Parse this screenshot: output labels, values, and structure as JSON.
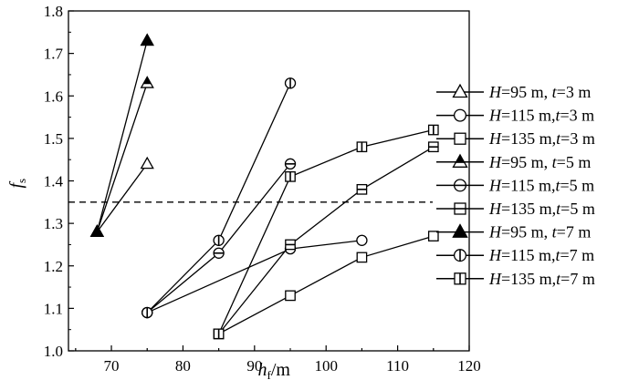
{
  "chart_data": {
    "type": "line",
    "xlabel": {
      "symbol": "h",
      "subscript": "f",
      "unit": "/m"
    },
    "ylabel": {
      "symbol": "f",
      "subscript": "s"
    },
    "xlim": [
      64,
      120
    ],
    "ylim": [
      1.0,
      1.8
    ],
    "xticks": [
      70,
      80,
      90,
      100,
      110,
      120
    ],
    "yticks": [
      1.0,
      1.1,
      1.2,
      1.3,
      1.4,
      1.5,
      1.6,
      1.7,
      1.8
    ],
    "ytick_labels": [
      "1.0",
      "1.1",
      "1.2",
      "1.3",
      "1.4",
      "1.5",
      "1.6",
      "1.7",
      "1.8"
    ],
    "reference_line": {
      "y": 1.35,
      "style": "dashed"
    },
    "grid": false,
    "legend_position": "right",
    "series": [
      {
        "name": "H=95 m,  t=3 m",
        "H": "95",
        "t": "3",
        "sep": ",  ",
        "marker": "triangle",
        "fill": "open",
        "x": [
          68,
          75
        ],
        "y": [
          1.28,
          1.44
        ]
      },
      {
        "name": "H=115 m,t=3 m",
        "H": "115",
        "t": "3",
        "sep": ",",
        "marker": "circle",
        "fill": "open",
        "x": [
          75,
          95,
          105
        ],
        "y": [
          1.09,
          1.24,
          1.26
        ]
      },
      {
        "name": "H=135 m,t=3 m",
        "H": "135",
        "t": "3",
        "sep": ",",
        "marker": "square",
        "fill": "open",
        "x": [
          85,
          95,
          105,
          115
        ],
        "y": [
          1.04,
          1.13,
          1.22,
          1.27
        ]
      },
      {
        "name": "H=95 m,  t=5 m",
        "H": "95",
        "t": "5",
        "sep": ",  ",
        "marker": "triangle",
        "fill": "hbar",
        "x": [
          68,
          75
        ],
        "y": [
          1.28,
          1.63
        ]
      },
      {
        "name": "H=115 m,t=5 m",
        "H": "115",
        "t": "5",
        "sep": ",",
        "marker": "circle",
        "fill": "hbar",
        "x": [
          75,
          85,
          95
        ],
        "y": [
          1.09,
          1.23,
          1.44
        ]
      },
      {
        "name": "H=135 m,t=5 m",
        "H": "135",
        "t": "5",
        "sep": ",",
        "marker": "square",
        "fill": "hbar",
        "x": [
          85,
          95,
          105,
          115
        ],
        "y": [
          1.04,
          1.25,
          1.38,
          1.48
        ]
      },
      {
        "name": "H=95 m,  t=7 m",
        "H": "95",
        "t": "7",
        "sep": ",  ",
        "marker": "triangle",
        "fill": "vbar",
        "x": [
          68,
          75
        ],
        "y": [
          1.28,
          1.73
        ]
      },
      {
        "name": "H=115 m,t=7 m",
        "H": "115",
        "t": "7",
        "sep": ",",
        "marker": "circle",
        "fill": "vbar",
        "x": [
          75,
          85,
          95
        ],
        "y": [
          1.09,
          1.26,
          1.63
        ]
      },
      {
        "name": "H=135 m,t=7 m",
        "H": "135",
        "t": "7",
        "sep": ",",
        "marker": "square",
        "fill": "vbar",
        "x": [
          85,
          95,
          105,
          115
        ],
        "y": [
          1.04,
          1.41,
          1.48,
          1.52
        ]
      }
    ]
  }
}
